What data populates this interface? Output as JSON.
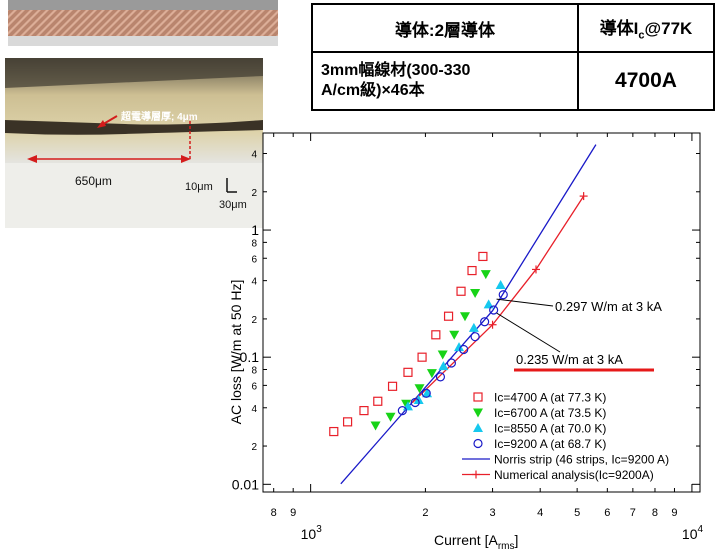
{
  "table": {
    "header_left": "導体:2層導体",
    "header_right_pre": "導体I",
    "header_right_sub": "c",
    "header_right_post": "@77K",
    "row_left_line1": "3mm幅線材(300-330",
    "row_left_line2": "A/cm級)×46本",
    "row_right": "4700A"
  },
  "photo": {
    "annotation_label": "超電導層厚; 4μm",
    "width_label": "650μm",
    "scale_label_1": "10μm",
    "scale_label_2": "30μm"
  },
  "colors": {
    "red": "#e8202a",
    "green": "#17d317",
    "cyan": "#16c8ee",
    "blue": "#1a1ac8",
    "underline": "#e61919"
  },
  "chart_data": {
    "type": "scatter",
    "xlabel_main": "Current [A",
    "xlabel_sub": "rms",
    "xlabel_end": "]",
    "ylabel": "AC loss [W/m at 50 Hz]",
    "xscale": "log",
    "yscale": "log",
    "xlim": [
      750,
      10500
    ],
    "ylim": [
      0.0087,
      5.8
    ],
    "x_major_ticks": [
      {
        "value": 1000,
        "base": "10",
        "exp": "3"
      },
      {
        "value": 10000,
        "base": "10",
        "exp": "4"
      }
    ],
    "x_minor_ticks": [
      {
        "value": 800,
        "label": "8"
      },
      {
        "value": 900,
        "label": "9"
      },
      {
        "value": 2000,
        "label": "2"
      },
      {
        "value": 3000,
        "label": "3"
      },
      {
        "value": 4000,
        "label": "4"
      },
      {
        "value": 5000,
        "label": "5"
      },
      {
        "value": 6000,
        "label": "6"
      },
      {
        "value": 7000,
        "label": "7"
      },
      {
        "value": 8000,
        "label": "8"
      },
      {
        "value": 9000,
        "label": "9"
      }
    ],
    "y_major_ticks": [
      {
        "value": 0.01,
        "label": "0.01"
      },
      {
        "value": 0.1,
        "label": "0.1"
      },
      {
        "value": 1,
        "label": "1"
      }
    ],
    "y_minor_ticks": [
      {
        "value": 0.02,
        "label": "2"
      },
      {
        "value": 0.04,
        "label": "4"
      },
      {
        "value": 0.06,
        "label": "6"
      },
      {
        "value": 0.08,
        "label": "8"
      },
      {
        "value": 0.2,
        "label": "2"
      },
      {
        "value": 0.4,
        "label": "4"
      },
      {
        "value": 0.6,
        "label": "6"
      },
      {
        "value": 0.8,
        "label": "8"
      },
      {
        "value": 2,
        "label": "2"
      },
      {
        "value": 4,
        "label": "4"
      }
    ],
    "series": [
      {
        "name": "Ic=4700 A (at 77.3 K)",
        "marker": "square",
        "color": "#e8202a",
        "x": [
          1150,
          1250,
          1380,
          1500,
          1640,
          1800,
          1960,
          2130,
          2300,
          2480,
          2650,
          2830
        ],
        "y": [
          0.026,
          0.031,
          0.038,
          0.045,
          0.059,
          0.076,
          0.1,
          0.15,
          0.21,
          0.33,
          0.48,
          0.62
        ]
      },
      {
        "name": "Ic=6700 A (at 73.5 K)",
        "marker": "triangle-down",
        "color": "#17d317",
        "x": [
          1480,
          1620,
          1780,
          1930,
          2080,
          2220,
          2380,
          2540,
          2700,
          2880
        ],
        "y": [
          0.029,
          0.034,
          0.043,
          0.057,
          0.075,
          0.105,
          0.15,
          0.21,
          0.32,
          0.45
        ]
      },
      {
        "name": "Ic=8550 A (at 70.0 K)",
        "marker": "triangle-up",
        "color": "#16c8ee",
        "x": [
          1800,
          1920,
          2020,
          2230,
          2450,
          2680,
          2930,
          3150
        ],
        "y": [
          0.041,
          0.046,
          0.052,
          0.085,
          0.12,
          0.17,
          0.26,
          0.37
        ]
      },
      {
        "name": "Ic=9200 A (at 68.7 K)",
        "marker": "circle",
        "color": "#1a1ac8",
        "x": [
          1740,
          1880,
          2010,
          2190,
          2340,
          2520,
          2700,
          2860,
          3020,
          3200
        ],
        "y": [
          0.038,
          0.044,
          0.052,
          0.07,
          0.09,
          0.115,
          0.145,
          0.19,
          0.235,
          0.31
        ]
      },
      {
        "name": "Norris strip (46 strips, Ic=9200 A)",
        "marker": "line",
        "color": "#1a1ac8",
        "x": [
          1200,
          3000,
          5600
        ],
        "y": [
          0.0101,
          0.232,
          4.7
        ]
      },
      {
        "name": "Numerical analysis(Ic=9200A)",
        "marker": "line-plus",
        "color": "#e8202a",
        "x": [
          1850,
          3000,
          3900,
          5200
        ],
        "y": [
          0.044,
          0.18,
          0.49,
          1.85
        ]
      }
    ],
    "annotations": [
      {
        "text": "0.297 W/m at 3 kA",
        "x": 3000,
        "y": 0.297,
        "underline": false
      },
      {
        "text": "0.235 W/m at 3 kA",
        "x": 3000,
        "y": 0.235,
        "underline": true
      }
    ]
  }
}
